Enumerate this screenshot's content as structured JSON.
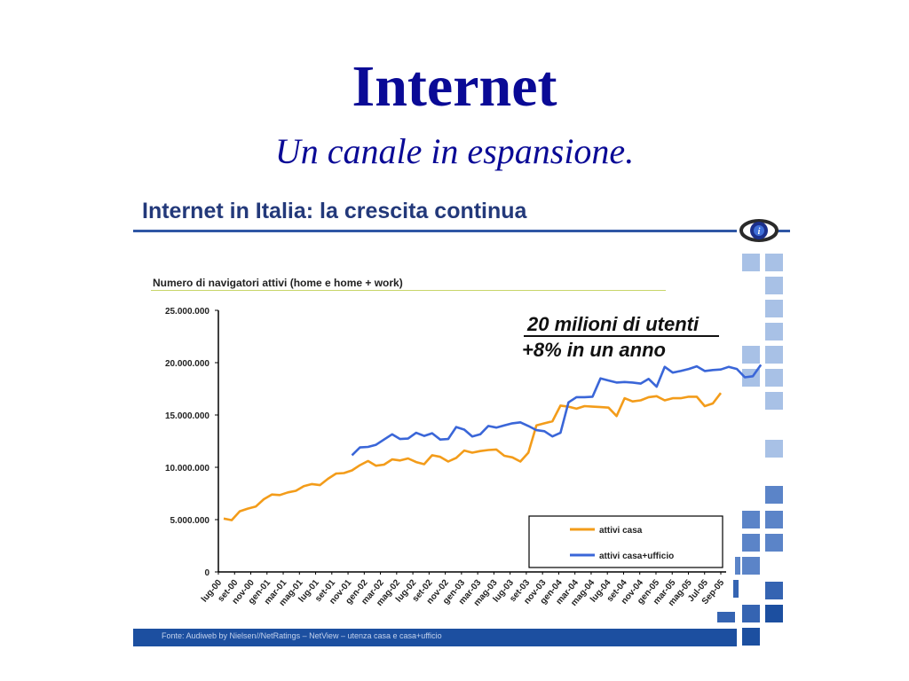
{
  "slide": {
    "title": "Internet",
    "subtitle": "Un canale in espansione."
  },
  "panel": {
    "title": "Internet in Italia: la crescita continua",
    "source": "Fonte: Audiweb by Nielsen//NetRatings – NetView – utenza casa e casa+ufficio"
  },
  "callouts": {
    "line1": "20 milioni di utenti",
    "line2": "+8% in un anno"
  },
  "colors": {
    "title": "#0a0a96",
    "series_casa": "#f39c1a",
    "series_ufficio": "#3a66d8",
    "accent": "#1c4fa0"
  },
  "chart_data": {
    "type": "line",
    "title": "Numero di navigatori attivi (home e home + work)",
    "ylim": [
      0,
      25000000
    ],
    "yticks": [
      "0",
      "5.000.000",
      "10.000.000",
      "15.000.000",
      "20.000.000",
      "25.000.000"
    ],
    "ytick_values": [
      0,
      5000000,
      10000000,
      15000000,
      20000000,
      25000000
    ],
    "xlabels": [
      "lug-00",
      "set-00",
      "nov-00",
      "gen-01",
      "mar-01",
      "mag-01",
      "lug-01",
      "set-01",
      "nov-01",
      "gen-02",
      "mar-02",
      "mag-02",
      "lug-02",
      "set-02",
      "nov-02",
      "gen-03",
      "mar-03",
      "mag-03",
      "lug-03",
      "set-03",
      "nov-03",
      "gen-04",
      "mar-04",
      "mag-04",
      "lug-04",
      "set-04",
      "nov-04",
      "gen-05",
      "mar-05",
      "mag-05",
      "Jul-05",
      "Sep-05"
    ],
    "legend": "bottom-right",
    "grid": false,
    "series": [
      {
        "name": "attivi casa",
        "color": "#f39c1a",
        "values": [
          5100000,
          4950000,
          5800000,
          6050000,
          6250000,
          6950000,
          7400000,
          7350000,
          7600000,
          7750000,
          8200000,
          8400000,
          8300000,
          8900000,
          9400000,
          9450000,
          9700000,
          10200000,
          10600000,
          10150000,
          10250000,
          10750000,
          10650000,
          10850000,
          10500000,
          10300000,
          11150000,
          11000000,
          10550000,
          10900000,
          11600000,
          11400000,
          11550000,
          11650000,
          11700000,
          11100000,
          10950000,
          10550000,
          11400000,
          14000000,
          14200000,
          14400000,
          15900000,
          15800000,
          15600000,
          15850000,
          15800000,
          15750000,
          15700000,
          14900000,
          16600000,
          16300000,
          16400000,
          16700000,
          16800000,
          16400000,
          16600000,
          16600000,
          16750000,
          16750000,
          15850000,
          16100000,
          17100000
        ]
      },
      {
        "name": "attivi casa+ufficio",
        "color": "#3a66d8",
        "start_index": 16,
        "values": [
          11150000,
          11900000,
          11950000,
          12150000,
          12650000,
          13150000,
          12700000,
          12750000,
          13300000,
          13000000,
          13250000,
          12650000,
          12700000,
          13850000,
          13600000,
          12950000,
          13150000,
          13950000,
          13800000,
          14000000,
          14200000,
          14300000,
          13950000,
          13550000,
          13450000,
          12950000,
          13300000,
          16200000,
          16700000,
          16700000,
          16750000,
          18500000,
          18300000,
          18100000,
          18150000,
          18100000,
          18000000,
          18450000,
          17700000,
          19600000,
          19050000,
          19200000,
          19400000,
          19650000,
          19200000,
          19300000,
          19350000,
          19600000,
          19400000,
          18600000,
          18700000,
          19800000
        ]
      }
    ]
  }
}
